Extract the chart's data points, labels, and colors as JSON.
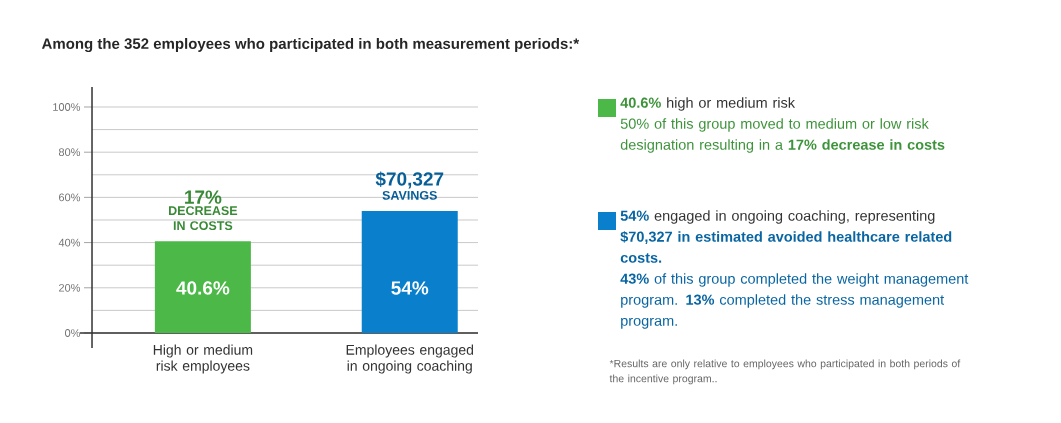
{
  "chart_data": {
    "type": "bar",
    "title": "Among the 352 employees who participated in both measurement periods:*",
    "categories": [
      "High or medium risk employees",
      "Employees engaged in ongoing coaching"
    ],
    "values": [
      40.6,
      54
    ],
    "colors": [
      "#4cb848",
      "#0a7fcb"
    ],
    "value_labels": [
      "40.6%",
      "54%"
    ],
    "ylim": [
      0,
      100
    ],
    "yticks": [
      {
        "value": 0,
        "label": "0%"
      },
      {
        "value": 20,
        "label": "20%"
      },
      {
        "value": 40,
        "label": "40%"
      },
      {
        "value": 60,
        "label": "60%"
      },
      {
        "value": 80,
        "label": "80%"
      },
      {
        "value": 100,
        "label": "100%"
      }
    ],
    "grid": "y",
    "annotations": [
      {
        "text": "17%",
        "x": "High or medium risk employees",
        "y": 40.6
      },
      {
        "text": "DECREASE IN COSTS",
        "x": "High or medium risk employees",
        "y": 40.6
      },
      {
        "text": "$70,327",
        "x": "Employees engaged in ongoing coaching",
        "y": 54
      },
      {
        "text": "SAVINGS",
        "x": "Employees engaged in ongoing coaching",
        "y": 54
      },
      "**40.6%** high or medium risk",
      "50% of this group moved to medium or low risk designation resulting in a **17% decrease in costs**",
      "**54%** engaged in ongoing coaching, representing **$70,327 in estimated avoided healthcare related costs.**",
      "**43%** of this group completed the weight management program. **13%** completed the stress management program.",
      "*Results are only relative to employees who participated in both periods of the incentive program.."
    ]
  }
}
